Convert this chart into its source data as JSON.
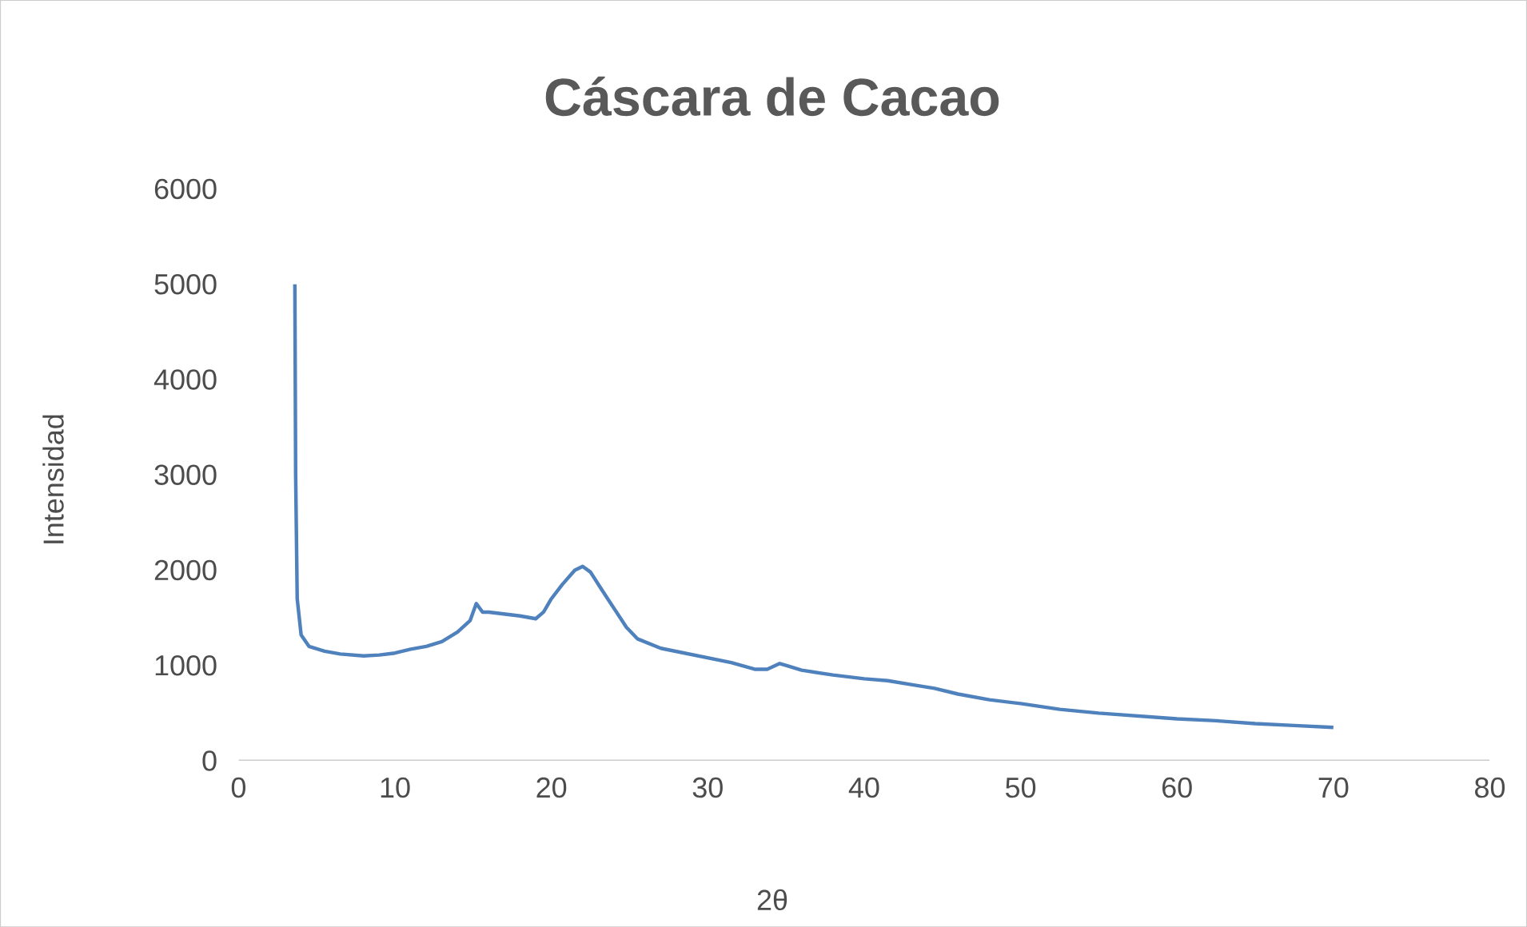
{
  "chart_data": {
    "type": "line",
    "title": "Cáscara de Cacao",
    "xlabel": "2θ",
    "ylabel": "Intensidad",
    "x": [
      3.6,
      3.65,
      3.75,
      4.0,
      4.5,
      5.5,
      6.5,
      8,
      9,
      10,
      11,
      12,
      13,
      14,
      14.8,
      15.2,
      15.6,
      16,
      17,
      18,
      19,
      19.5,
      20,
      20.7,
      21.5,
      22,
      22.5,
      23.2,
      24,
      24.8,
      25.5,
      27,
      28.5,
      30,
      31.5,
      33,
      33.8,
      34.6,
      35,
      36,
      38,
      40,
      41.5,
      43,
      44.5,
      46,
      48,
      50,
      52.5,
      55,
      57.5,
      60,
      62.5,
      65,
      67.5,
      70
    ],
    "series": [
      {
        "color": "#4f81bd",
        "values": [
          5000,
          3000,
          1700,
          1320,
          1200,
          1150,
          1120,
          1100,
          1110,
          1130,
          1170,
          1200,
          1250,
          1350,
          1470,
          1650,
          1560,
          1560,
          1540,
          1520,
          1490,
          1560,
          1700,
          1850,
          2000,
          2040,
          1980,
          1800,
          1600,
          1400,
          1280,
          1180,
          1130,
          1080,
          1030,
          960,
          960,
          1020,
          1000,
          950,
          900,
          860,
          840,
          800,
          760,
          700,
          640,
          600,
          540,
          500,
          470,
          440,
          420,
          390,
          370,
          350
        ]
      }
    ],
    "xlim": [
      0,
      80
    ],
    "ylim": [
      0,
      6000
    ],
    "xticks": [
      0,
      10,
      20,
      30,
      40,
      50,
      60,
      70,
      80
    ],
    "yticks": [
      0,
      1000,
      2000,
      3000,
      4000,
      5000,
      6000
    ],
    "grid": false,
    "marker": "none",
    "line_style": "solid"
  }
}
